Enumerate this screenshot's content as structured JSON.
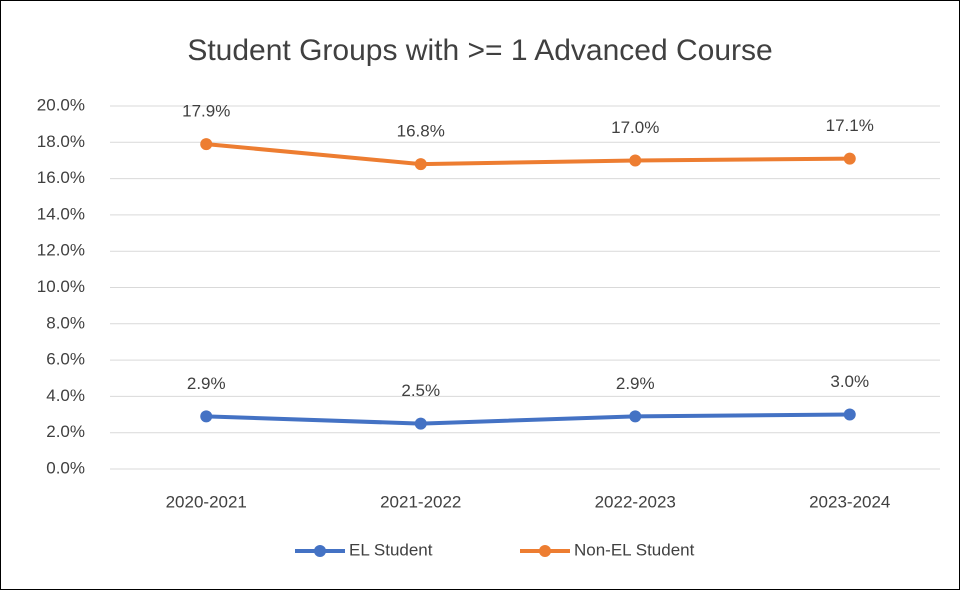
{
  "chart_data": {
    "type": "line",
    "title": "Student Groups with >= 1 Advanced Course",
    "categories": [
      "2020-2021",
      "2021-2022",
      "2022-2023",
      "2023-2024"
    ],
    "series": [
      {
        "name": "EL Student",
        "color": "#4472c4",
        "values": [
          2.9,
          2.5,
          2.9,
          3.0
        ],
        "value_labels": [
          "2.9%",
          "2.5%",
          "2.9%",
          "3.0%"
        ]
      },
      {
        "name": "Non-EL Student",
        "color": "#ed7d31",
        "values": [
          17.9,
          16.8,
          17.0,
          17.1
        ],
        "value_labels": [
          "17.9%",
          "16.8%",
          "17.0%",
          "17.1%"
        ]
      }
    ],
    "ylim": [
      0,
      20
    ],
    "yticks": [
      {
        "value": 0,
        "label": "0.0%"
      },
      {
        "value": 2,
        "label": "2.0%"
      },
      {
        "value": 4,
        "label": "4.0%"
      },
      {
        "value": 6,
        "label": "6.0%"
      },
      {
        "value": 8,
        "label": "8.0%"
      },
      {
        "value": 10,
        "label": "10.0%"
      },
      {
        "value": 12,
        "label": "12.0%"
      },
      {
        "value": 14,
        "label": "14.0%"
      },
      {
        "value": 16,
        "label": "16.0%"
      },
      {
        "value": 18,
        "label": "18.0%"
      },
      {
        "value": 20,
        "label": "20.0%"
      }
    ],
    "grid": true,
    "legend": "bottom"
  }
}
